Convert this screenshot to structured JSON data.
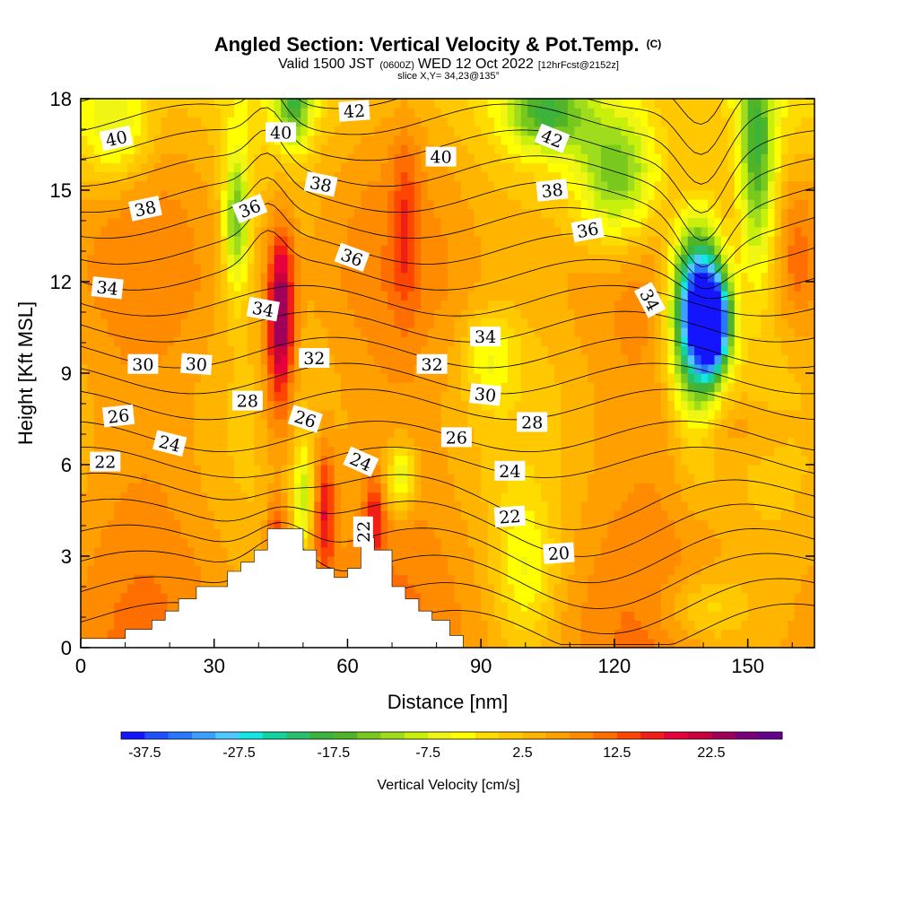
{
  "title": {
    "main": "Angled Section: Vertical Velocity & Pot.Temp.",
    "copyright": "(C)",
    "sub_a": "Valid 1500 JST",
    "sub_b": "(0600Z)",
    "sub_c": "WED 12 Oct 2022",
    "sub_d": "[12hrFcst@2152z]",
    "slice": "slice X,Y= 34,23@135°"
  },
  "chart_data": {
    "type": "heatmap",
    "xlabel": "Distance [nm]",
    "ylabel": "Height [Kft MSL]",
    "xlim": [
      0,
      165
    ],
    "ylim": [
      0,
      18
    ],
    "xticks": [
      0,
      30,
      60,
      90,
      120,
      150
    ],
    "yticks": [
      0,
      3,
      6,
      9,
      12,
      15,
      18
    ],
    "colorbar": {
      "label": "Vertical Velocity [cm/s]",
      "tick_values": [
        -37.5,
        -27.5,
        -17.5,
        -7.5,
        2.5,
        12.5,
        22.5
      ],
      "tick_labels": [
        "-37.5",
        "-27.5",
        "-17.5",
        "-7.5",
        "2.5",
        "12.5",
        "22.5"
      ],
      "range": [
        -40,
        30
      ],
      "bin_width": 2.5,
      "colors": [
        "#1414ff",
        "#1e50ff",
        "#2878ff",
        "#3ca0ff",
        "#50c8ff",
        "#14e6e6",
        "#14d2a0",
        "#28be6e",
        "#3cb43c",
        "#50b428",
        "#78c81e",
        "#a0dc1e",
        "#c8f00a",
        "#f0f514",
        "#ffff00",
        "#ffdc00",
        "#ffc800",
        "#ffb400",
        "#ffa000",
        "#ff8c00",
        "#ff6e00",
        "#ff4600",
        "#f01e14",
        "#e6003c",
        "#c8003c",
        "#a0005a",
        "#780078",
        "#64008c"
      ]
    },
    "terrain_profile": {
      "x": [
        0,
        10,
        10,
        16,
        16,
        19,
        19,
        22,
        22,
        26,
        26,
        33,
        33,
        36,
        36,
        39,
        39,
        42,
        42,
        50,
        50,
        53,
        53,
        57,
        57,
        60,
        60,
        63,
        63,
        66,
        66,
        70,
        70,
        73,
        73,
        76,
        76,
        79,
        79,
        83,
        83,
        86,
        86,
        165
      ],
      "y": [
        0.3,
        0.3,
        0.6,
        0.6,
        0.9,
        0.9,
        1.2,
        1.2,
        1.6,
        1.6,
        2.0,
        2.0,
        2.5,
        2.5,
        2.8,
        2.8,
        3.2,
        3.2,
        3.9,
        3.9,
        3.2,
        3.2,
        2.6,
        2.6,
        2.3,
        2.3,
        2.6,
        2.6,
        3.6,
        3.6,
        3.2,
        3.2,
        2.0,
        2.0,
        1.6,
        1.6,
        1.2,
        1.2,
        0.9,
        0.9,
        0.4,
        0.4,
        0.0,
        0.0
      ]
    },
    "vertical_velocity_features": [
      {
        "x": 45,
        "y": 11,
        "sx": 3,
        "sy": 2.8,
        "value": 26
      },
      {
        "x": 44,
        "y": 8,
        "sx": 4,
        "sy": 3,
        "value": 10
      },
      {
        "x": 44,
        "y": 3.6,
        "sx": 2.2,
        "sy": 1.3,
        "value": 16
      },
      {
        "x": 55,
        "y": 4.5,
        "sx": 2.3,
        "sy": 2.2,
        "value": 18
      },
      {
        "x": 66,
        "y": 4.2,
        "sx": 2.2,
        "sy": 1.5,
        "value": 15
      },
      {
        "x": 73,
        "y": 14,
        "sx": 3,
        "sy": 3,
        "value": 12
      },
      {
        "x": 18,
        "y": 5,
        "sx": 10,
        "sy": 3.5,
        "value": 5
      },
      {
        "x": 35,
        "y": 14,
        "sx": 3,
        "sy": 2.5,
        "value": -13
      },
      {
        "x": 48,
        "y": 17.8,
        "sx": 4,
        "sy": 1.4,
        "value": -12
      },
      {
        "x": 8,
        "y": 17,
        "sx": 8,
        "sy": 1.8,
        "value": -7
      },
      {
        "x": 50,
        "y": 5,
        "sx": 2,
        "sy": 1.6,
        "value": -8
      },
      {
        "x": 72,
        "y": 5.6,
        "sx": 3.5,
        "sy": 1.1,
        "value": -9
      },
      {
        "x": 142,
        "y": 10.6,
        "sx": 4,
        "sy": 1.5,
        "value": -35
      },
      {
        "x": 139,
        "y": 11.5,
        "sx": 6,
        "sy": 2.4,
        "value": -25
      },
      {
        "x": 138,
        "y": 10,
        "sx": 5.5,
        "sy": 3.5,
        "value": -13
      },
      {
        "x": 121,
        "y": 15.5,
        "sx": 10,
        "sy": 2.4,
        "value": -16
      },
      {
        "x": 105,
        "y": 17.5,
        "sx": 9,
        "sy": 1.3,
        "value": -12
      },
      {
        "x": 152,
        "y": 16,
        "sx": 4,
        "sy": 4,
        "value": -14
      },
      {
        "x": 161,
        "y": 13,
        "sx": 4,
        "sy": 2.5,
        "value": 12
      },
      {
        "x": 146,
        "y": 7.2,
        "sx": 13,
        "sy": 1.1,
        "value": 9
      },
      {
        "x": 100,
        "y": 2.5,
        "sx": 7,
        "sy": 2.5,
        "value": -4
      },
      {
        "x": 140,
        "y": 1.2,
        "sx": 10,
        "sy": 1.2,
        "value": -3
      },
      {
        "x": 92,
        "y": 9.5,
        "sx": 6,
        "sy": 1.5,
        "value": -3
      }
    ],
    "contour_interval_K": 1,
    "contour_labels": [
      {
        "text": "40",
        "x": 8,
        "y": 16.7,
        "angle": -12
      },
      {
        "text": "40",
        "x": 45,
        "y": 16.9,
        "angle": 0
      },
      {
        "text": "42",
        "x": 61.5,
        "y": 17.6,
        "angle": -4
      },
      {
        "text": "40",
        "x": 81,
        "y": 16.1,
        "angle": 0
      },
      {
        "text": "42",
        "x": 106,
        "y": 16.7,
        "angle": 22
      },
      {
        "text": "38",
        "x": 14.5,
        "y": 14.4,
        "angle": -12
      },
      {
        "text": "38",
        "x": 54,
        "y": 15.2,
        "angle": 12
      },
      {
        "text": "38",
        "x": 106,
        "y": 15,
        "angle": -6
      },
      {
        "text": "36",
        "x": 38,
        "y": 14.4,
        "angle": -22
      },
      {
        "text": "36",
        "x": 114,
        "y": 13.7,
        "angle": -10
      },
      {
        "text": "36",
        "x": 61,
        "y": 12.8,
        "angle": 20
      },
      {
        "text": "34",
        "x": 6,
        "y": 11.8,
        "angle": 6
      },
      {
        "text": "34",
        "x": 41,
        "y": 11.1,
        "angle": 10
      },
      {
        "text": "34",
        "x": 128,
        "y": 11.4,
        "angle": 62
      },
      {
        "text": "34",
        "x": 91,
        "y": 10.2,
        "angle": 0
      },
      {
        "text": "30",
        "x": 14,
        "y": 9.3,
        "angle": 0
      },
      {
        "text": "30",
        "x": 26,
        "y": 9.3,
        "angle": 4
      },
      {
        "text": "32",
        "x": 52.5,
        "y": 9.5,
        "angle": 0
      },
      {
        "text": "32",
        "x": 79,
        "y": 9.3,
        "angle": 0
      },
      {
        "text": "30",
        "x": 91,
        "y": 8.3,
        "angle": 6
      },
      {
        "text": "28",
        "x": 37.5,
        "y": 8.1,
        "angle": 0
      },
      {
        "text": "28",
        "x": 101.5,
        "y": 7.4,
        "angle": 0
      },
      {
        "text": "26",
        "x": 8.5,
        "y": 7.6,
        "angle": -6
      },
      {
        "text": "26",
        "x": 50.5,
        "y": 7.5,
        "angle": 18
      },
      {
        "text": "26",
        "x": 84.5,
        "y": 6.9,
        "angle": 0
      },
      {
        "text": "24",
        "x": 20,
        "y": 6.7,
        "angle": 14
      },
      {
        "text": "24",
        "x": 63,
        "y": 6.1,
        "angle": 24
      },
      {
        "text": "24",
        "x": 96.5,
        "y": 5.8,
        "angle": 0
      },
      {
        "text": "22",
        "x": 5.5,
        "y": 6.1,
        "angle": 0
      },
      {
        "text": "22",
        "x": 96.5,
        "y": 4.3,
        "angle": -4
      },
      {
        "text": "22",
        "x": 63.5,
        "y": 3.8,
        "angle": -90
      },
      {
        "text": "20",
        "x": 107.5,
        "y": 3.1,
        "angle": -4
      }
    ]
  }
}
